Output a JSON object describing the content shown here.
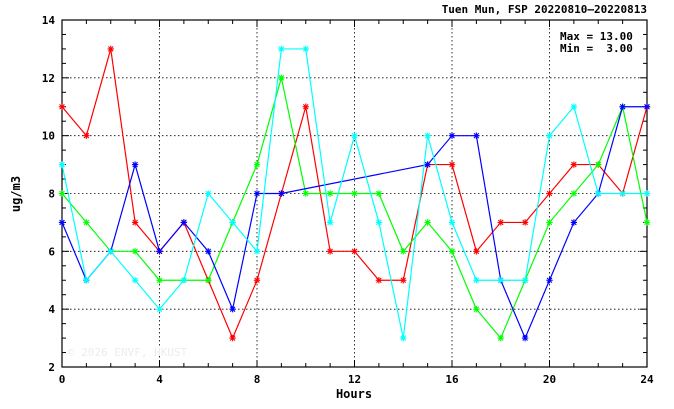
{
  "chart_data": {
    "type": "line",
    "title": "Tuen Mun, FSP 20220810–20220813",
    "xlabel": "Hours",
    "ylabel": "ug/m3",
    "xlim": [
      0,
      24
    ],
    "ylim": [
      2,
      14
    ],
    "xticks": [
      0,
      4,
      8,
      12,
      16,
      20,
      24
    ],
    "yticks": [
      2,
      4,
      6,
      8,
      10,
      12,
      14
    ],
    "grid": true,
    "stats": {
      "max_label": "Max = 13.00",
      "min_label": "Min =  3.00"
    },
    "watermark": "© 2026 ENVF, HKUST",
    "series": [
      {
        "color": "#ff0000",
        "points": [
          [
            0,
            11
          ],
          [
            1,
            10
          ],
          [
            2,
            13
          ],
          [
            3,
            7
          ],
          [
            4,
            6
          ],
          [
            5,
            7
          ],
          [
            6,
            5
          ],
          [
            7,
            3
          ],
          [
            8,
            5
          ],
          [
            9,
            8
          ],
          [
            10,
            11
          ],
          [
            11,
            6
          ],
          [
            12,
            6
          ],
          [
            13,
            5
          ],
          [
            14,
            5
          ],
          [
            15,
            9
          ],
          [
            16,
            9
          ],
          [
            17,
            6
          ],
          [
            18,
            7
          ],
          [
            19,
            7
          ],
          [
            20,
            8
          ],
          [
            21,
            9
          ],
          [
            22,
            9
          ],
          [
            23,
            8
          ],
          [
            24,
            11
          ]
        ]
      },
      {
        "color": "#00ff00",
        "points": [
          [
            0,
            8
          ],
          [
            1,
            7
          ],
          [
            2,
            6
          ],
          [
            3,
            6
          ],
          [
            4,
            5
          ],
          [
            5,
            5
          ],
          [
            6,
            5
          ],
          [
            7,
            7
          ],
          [
            8,
            9
          ],
          [
            9,
            12
          ],
          [
            10,
            8
          ],
          [
            11,
            8
          ],
          [
            12,
            8
          ],
          [
            13,
            8
          ],
          [
            14,
            6
          ],
          [
            15,
            7
          ],
          [
            16,
            6
          ],
          [
            17,
            4
          ],
          [
            18,
            3
          ],
          [
            19,
            5
          ],
          [
            20,
            7
          ],
          [
            21,
            8
          ],
          [
            22,
            9
          ],
          [
            23,
            11
          ],
          [
            24,
            7
          ]
        ]
      },
      {
        "color": "#0000ff",
        "points": [
          [
            0,
            7
          ],
          [
            1,
            5
          ],
          [
            2,
            6
          ],
          [
            3,
            9
          ],
          [
            4,
            6
          ],
          [
            5,
            7
          ],
          [
            6,
            6
          ],
          [
            7,
            4
          ],
          [
            8,
            8
          ],
          [
            9,
            8
          ],
          [
            15,
            9
          ],
          [
            16,
            10
          ],
          [
            17,
            10
          ],
          [
            18,
            5
          ],
          [
            19,
            3
          ],
          [
            20,
            5
          ],
          [
            21,
            7
          ],
          [
            22,
            8
          ],
          [
            23,
            11
          ],
          [
            24,
            11
          ]
        ]
      },
      {
        "color": "#00ffff",
        "points": [
          [
            0,
            9
          ],
          [
            1,
            5
          ],
          [
            2,
            6
          ],
          [
            3,
            5
          ],
          [
            4,
            4
          ],
          [
            5,
            5
          ],
          [
            6,
            8
          ],
          [
            7,
            7
          ],
          [
            8,
            6
          ],
          [
            9,
            13
          ],
          [
            10,
            13
          ],
          [
            11,
            7
          ],
          [
            12,
            10
          ],
          [
            13,
            7
          ],
          [
            14,
            3
          ],
          [
            15,
            10
          ],
          [
            16,
            7
          ],
          [
            17,
            5
          ],
          [
            18,
            5
          ],
          [
            19,
            5
          ],
          [
            20,
            10
          ],
          [
            21,
            11
          ],
          [
            22,
            8
          ],
          [
            23,
            8
          ],
          [
            24,
            8
          ]
        ]
      }
    ]
  }
}
